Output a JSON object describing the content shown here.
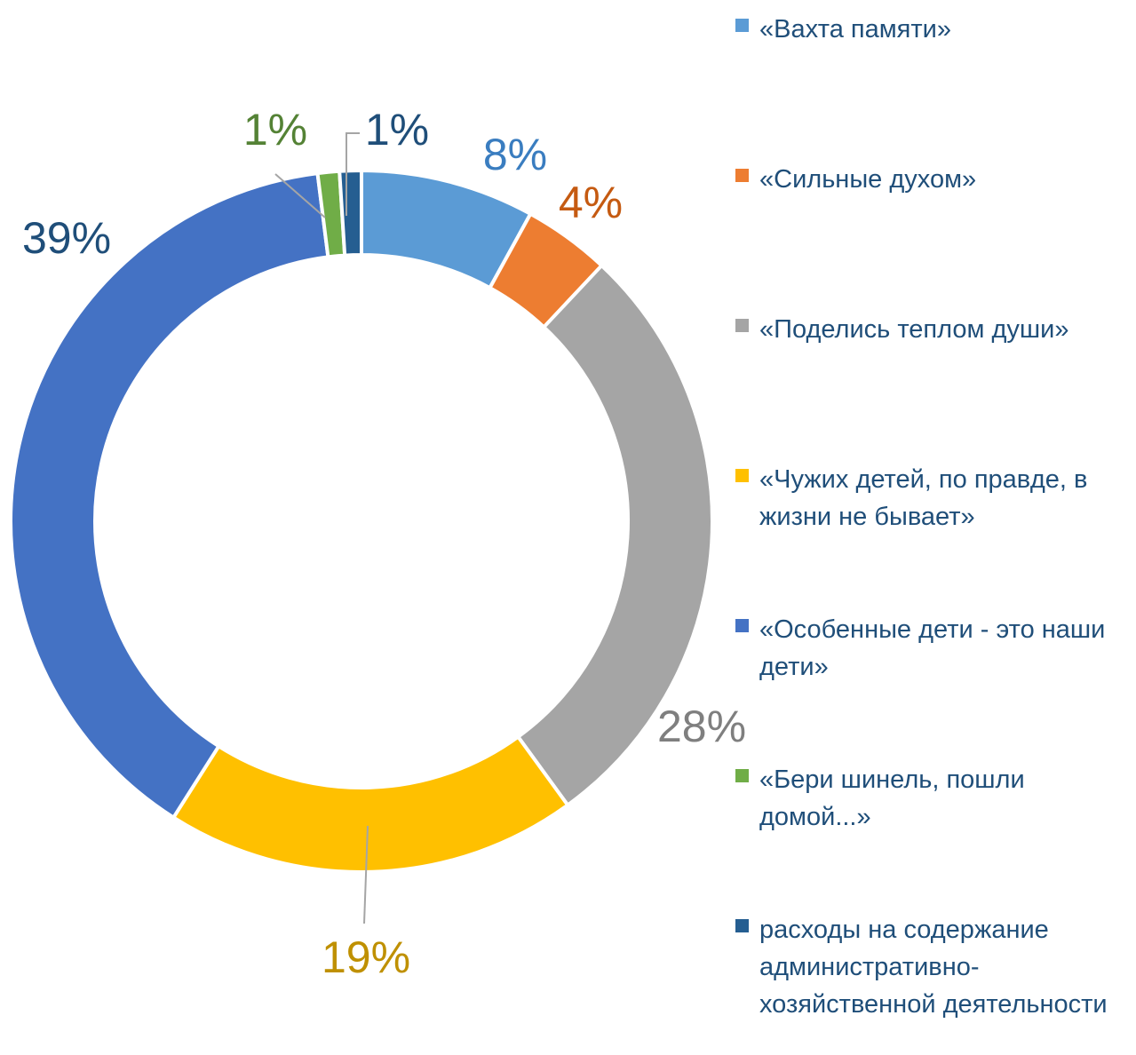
{
  "chart_data": {
    "type": "donut",
    "categories": [
      "«Вахта памяти»",
      "«Сильные духом»",
      "«Поделись теплом души»",
      "«Чужих детей, по правде, в жизни не бывает»",
      "«Особенные дети - это наши дети»",
      "«Бери шинель, пошли домой...»",
      "расходы на содержание административно-хозяйственной деятельности"
    ],
    "values": [
      8,
      4,
      28,
      19,
      39,
      1,
      1
    ],
    "value_labels": [
      "8%",
      "4%",
      "28%",
      "19%",
      "39%",
      "1%",
      "1%"
    ],
    "colors": [
      "#5b9bd5",
      "#ed7d31",
      "#a5a5a5",
      "#ffc000",
      "#4472c4",
      "#70ad47",
      "#255e91"
    ],
    "legend": "right"
  }
}
